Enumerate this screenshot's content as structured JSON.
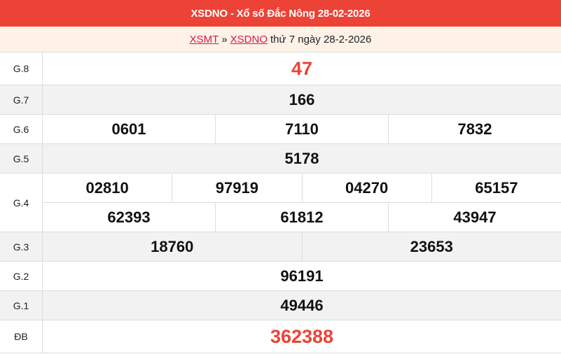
{
  "header": {
    "title": "XSDNO - Xổ số Đắc Nông 28-02-2026"
  },
  "breadcrumb": {
    "link1": "XSMT",
    "sep": "»",
    "link2": "XSDNO",
    "text": "thứ 7 ngày 28-2-2026"
  },
  "colors": {
    "header_bg": "#ec4336",
    "highlight": "#ec4336",
    "link": "#d3194a"
  },
  "prizes": [
    {
      "label": "G.8",
      "lines": [
        [
          "47"
        ]
      ]
    },
    {
      "label": "G.7",
      "lines": [
        [
          "166"
        ]
      ]
    },
    {
      "label": "G.6",
      "lines": [
        [
          "0601",
          "7110",
          "7832"
        ]
      ]
    },
    {
      "label": "G.5",
      "lines": [
        [
          "5178"
        ]
      ]
    },
    {
      "label": "G.4",
      "lines": [
        [
          "02810",
          "97919",
          "04270",
          "65157"
        ],
        [
          "62393",
          "61812",
          "43947"
        ]
      ]
    },
    {
      "label": "G.3",
      "lines": [
        [
          "18760",
          "23653"
        ]
      ]
    },
    {
      "label": "G.2",
      "lines": [
        [
          "96191"
        ]
      ]
    },
    {
      "label": "G.1",
      "lines": [
        [
          "49446"
        ]
      ]
    },
    {
      "label": "ĐB",
      "lines": [
        [
          "362388"
        ]
      ]
    }
  ]
}
